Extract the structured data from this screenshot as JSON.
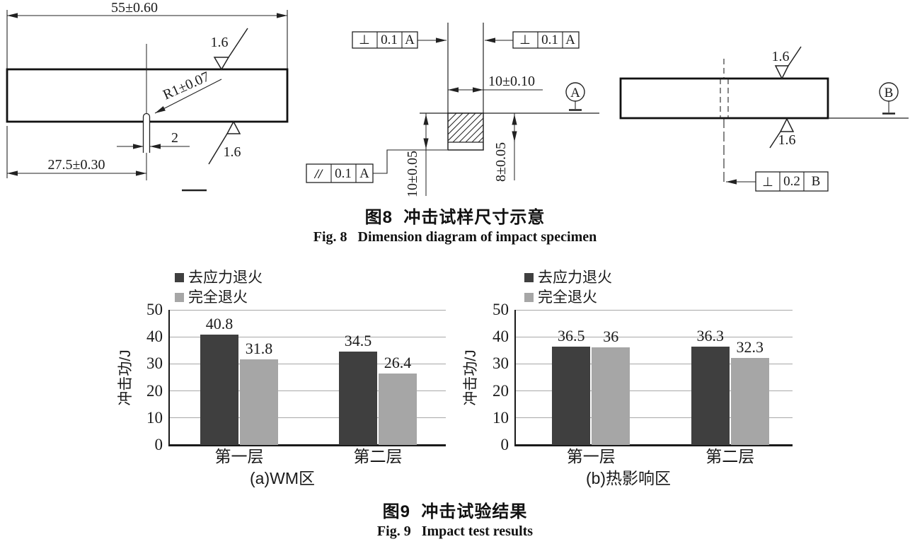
{
  "figure8": {
    "caption_zh": "图8  冲击试样尺寸示意",
    "caption_en": "Fig. 8   Dimension diagram of impact specimen",
    "left_view": {
      "length_dim": "55±0.60",
      "roughness_top": "1.6",
      "radius_dim": "R1±0.07",
      "notch_width_dim": "2",
      "notch_position_dim": "27.5±0.30",
      "roughness_bottom": "1.6"
    },
    "middle_view": {
      "fcf_left": {
        "symbol": "⊥",
        "tolerance": "0.1",
        "datum": "A"
      },
      "fcf_right": {
        "symbol": "⊥",
        "tolerance": "0.1",
        "datum": "A"
      },
      "fcf_parallel": {
        "symbol": "//",
        "tolerance": "0.1",
        "datum": "A"
      },
      "width_dim": "10±0.10",
      "height_dim": "10±0.05",
      "depth_dim": "8±0.05",
      "datum_label": "A"
    },
    "right_view": {
      "roughness_top": "1.6",
      "roughness_bottom": "1.6",
      "datum_label": "B",
      "fcf": {
        "symbol": "⊥",
        "tolerance": "0.2",
        "datum": "B"
      }
    }
  },
  "figure9": {
    "caption_zh": "图9  冲击试验结果",
    "caption_en": "Fig. 9   Impact test results"
  },
  "chart_data": [
    {
      "type": "bar",
      "title": "(a)WM区",
      "categories": [
        "第一层",
        "第二层"
      ],
      "series": [
        {
          "name": "去应力退火",
          "color": "#3f3f3f",
          "values": [
            40.8,
            34.5
          ]
        },
        {
          "name": "完全退火",
          "color": "#a6a6a6",
          "values": [
            31.8,
            26.4
          ]
        }
      ],
      "ylabel": "冲击功/J",
      "ylim": [
        0,
        50
      ],
      "yticks": [
        0,
        10,
        20,
        30,
        40,
        50
      ],
      "grid": true,
      "legend_position": "top"
    },
    {
      "type": "bar",
      "title": "(b)热影响区",
      "categories": [
        "第一层",
        "第二层"
      ],
      "series": [
        {
          "name": "去应力退火",
          "color": "#3f3f3f",
          "values": [
            36.5,
            36.3
          ]
        },
        {
          "name": "完全退火",
          "color": "#a6a6a6",
          "values": [
            36,
            32.3
          ]
        }
      ],
      "ylabel": "冲击功/J",
      "ylim": [
        0,
        50
      ],
      "yticks": [
        0,
        10,
        20,
        30,
        40,
        50
      ],
      "grid": true,
      "legend_position": "top"
    }
  ]
}
